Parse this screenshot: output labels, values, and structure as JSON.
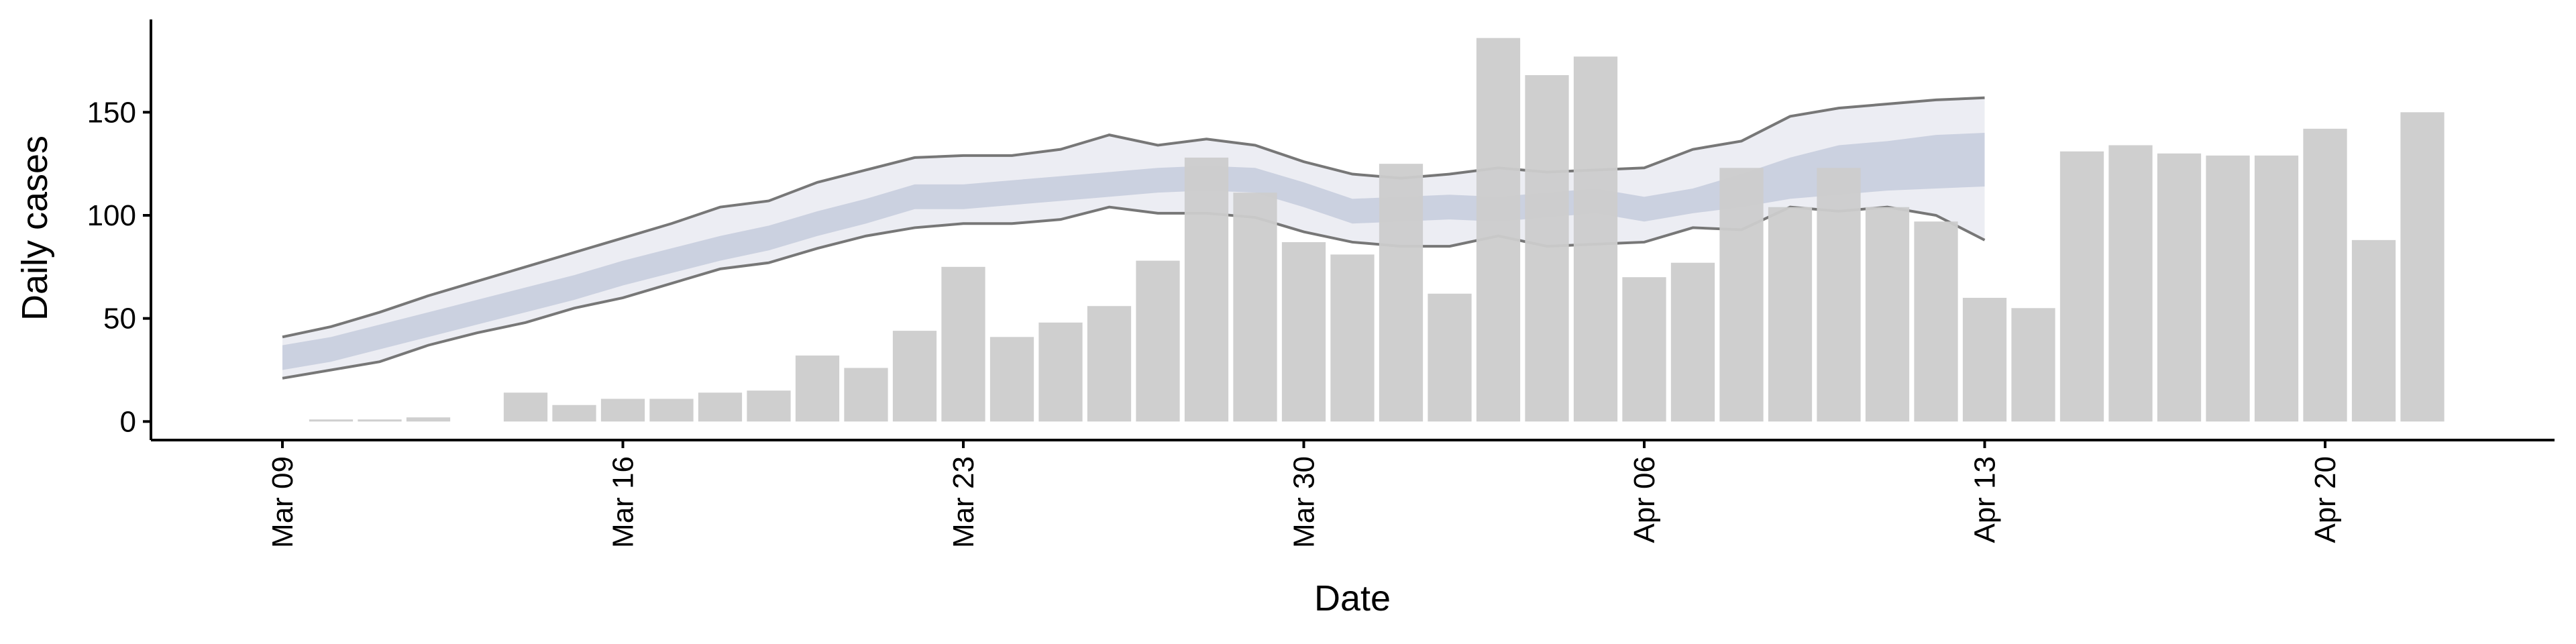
{
  "chart_data": {
    "type": "bar",
    "x_label": "Date",
    "y_label": "Daily cases",
    "x": [
      "Mar 09",
      "Mar 10",
      "Mar 11",
      "Mar 12",
      "Mar 13",
      "Mar 14",
      "Mar 15",
      "Mar 16",
      "Mar 17",
      "Mar 18",
      "Mar 19",
      "Mar 20",
      "Mar 21",
      "Mar 22",
      "Mar 23",
      "Mar 24",
      "Mar 25",
      "Mar 26",
      "Mar 27",
      "Mar 28",
      "Mar 29",
      "Mar 30",
      "Mar 31",
      "Apr 01",
      "Apr 02",
      "Apr 03",
      "Apr 04",
      "Apr 05",
      "Apr 06",
      "Apr 07",
      "Apr 08",
      "Apr 09",
      "Apr 10",
      "Apr 11",
      "Apr 12",
      "Apr 13",
      "Apr 14",
      "Apr 15",
      "Apr 16",
      "Apr 17",
      "Apr 18",
      "Apr 19",
      "Apr 20",
      "Apr 21",
      "Apr 22"
    ],
    "values": [
      0,
      1,
      1,
      2,
      0,
      14,
      8,
      11,
      11,
      14,
      15,
      32,
      26,
      44,
      75,
      41,
      48,
      56,
      78,
      128,
      111,
      87,
      81,
      125,
      62,
      186,
      168,
      177,
      70,
      77,
      123,
      104,
      123,
      104,
      97,
      60,
      55,
      131,
      134,
      130,
      129,
      129,
      142,
      88,
      150
    ],
    "color": "#cccccc",
    "ribbons": [
      {
        "color": "#e9eaf1",
        "line_color": "#777777",
        "upper": [
          41,
          46,
          53,
          61,
          68,
          75,
          82,
          89,
          96,
          104,
          107,
          116,
          122,
          128,
          129,
          129,
          132,
          139,
          134,
          137,
          134,
          126,
          120,
          118,
          120,
          123,
          121,
          122,
          123,
          132,
          136,
          148,
          152,
          154,
          156,
          157,
          null,
          null,
          null,
          null,
          null,
          null,
          null,
          null,
          null
        ],
        "lower": [
          21,
          25,
          29,
          37,
          43,
          48,
          55,
          60,
          67,
          74,
          77,
          84,
          90,
          94,
          96,
          96,
          98,
          104,
          101,
          101,
          99,
          92,
          87,
          85,
          85,
          90,
          85,
          86,
          87,
          94,
          93,
          104,
          102,
          104,
          100,
          88,
          null,
          null,
          null,
          null,
          null,
          null,
          null,
          null,
          null
        ]
      },
      {
        "color": "#c6cbdc",
        "upper": [
          37,
          41,
          47,
          53,
          59,
          65,
          71,
          78,
          84,
          90,
          95,
          102,
          108,
          115,
          115,
          117,
          119,
          121,
          123,
          124,
          123,
          116,
          108,
          109,
          110,
          109,
          111,
          113,
          109,
          113,
          120,
          128,
          134,
          136,
          139,
          140,
          null,
          null,
          null,
          null,
          null,
          null,
          null,
          null,
          null
        ],
        "lower": [
          25,
          29,
          35,
          41,
          47,
          53,
          59,
          66,
          72,
          78,
          83,
          90,
          96,
          103,
          103,
          105,
          107,
          109,
          111,
          112,
          111,
          104,
          96,
          97,
          98,
          97,
          99,
          101,
          97,
          101,
          104,
          108,
          110,
          112,
          113,
          114,
          null,
          null,
          null,
          null,
          null,
          null,
          null,
          null,
          null
        ]
      }
    ],
    "ylim": [
      -9,
      195
    ],
    "yticks": [
      0,
      50,
      100,
      150
    ],
    "xticks": [
      "Mar 09",
      "Mar 16",
      "Mar 23",
      "Mar 30",
      "Apr 06",
      "Apr 13",
      "Apr 20"
    ]
  }
}
